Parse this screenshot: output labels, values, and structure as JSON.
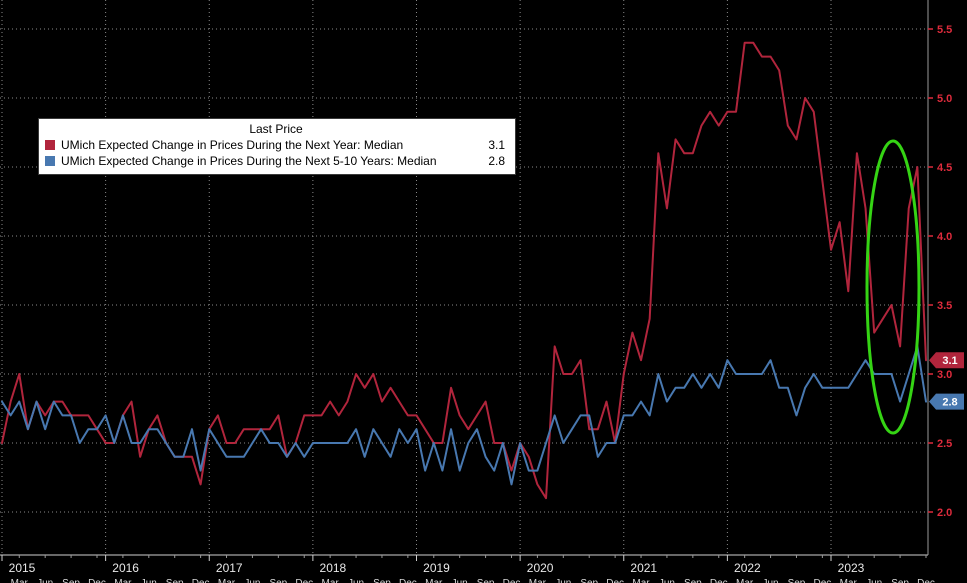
{
  "chart_data": {
    "type": "line",
    "legend_title": "Last Price",
    "background": "#000000",
    "grid": true,
    "years": [
      2015,
      2016,
      2017,
      2018,
      2019,
      2020,
      2021,
      2022,
      2023
    ],
    "x_axis": {
      "frequency": "monthly",
      "minor_labels": [
        "Mar",
        "Jun",
        "Sep",
        "Dec"
      ],
      "label_color": "#e8e8e8"
    },
    "y_axis": {
      "side": "right",
      "ticks": [
        2.0,
        2.5,
        3.0,
        3.5,
        4.0,
        4.5,
        5.0,
        5.5
      ],
      "min": 1.69,
      "max": 5.71,
      "label_color": "#de2b3c"
    },
    "series": [
      {
        "name": "UMich Expected Change in Prices During the Next Year: Median",
        "last_price": "3.1",
        "color": "#b1253c",
        "values": [
          2.5,
          2.8,
          3.0,
          2.6,
          2.8,
          2.7,
          2.8,
          2.8,
          2.7,
          2.7,
          2.7,
          2.6,
          2.5,
          2.5,
          2.7,
          2.8,
          2.4,
          2.6,
          2.7,
          2.5,
          2.4,
          2.4,
          2.4,
          2.2,
          2.6,
          2.7,
          2.5,
          2.5,
          2.6,
          2.6,
          2.6,
          2.6,
          2.7,
          2.4,
          2.5,
          2.7,
          2.7,
          2.7,
          2.8,
          2.7,
          2.8,
          3.0,
          2.9,
          3.0,
          2.8,
          2.9,
          2.8,
          2.7,
          2.7,
          2.6,
          2.5,
          2.5,
          2.9,
          2.7,
          2.6,
          2.7,
          2.8,
          2.5,
          2.5,
          2.3,
          2.5,
          2.4,
          2.2,
          2.1,
          3.2,
          3.0,
          3.0,
          3.1,
          2.6,
          2.6,
          2.8,
          2.5,
          3.0,
          3.3,
          3.1,
          3.4,
          4.6,
          4.2,
          4.7,
          4.6,
          4.6,
          4.8,
          4.9,
          4.8,
          4.9,
          4.9,
          5.4,
          5.4,
          5.3,
          5.3,
          5.2,
          4.8,
          4.7,
          5.0,
          4.9,
          4.4,
          3.9,
          4.1,
          3.6,
          4.6,
          4.2,
          3.3,
          3.4,
          3.5,
          3.2,
          4.2,
          4.5,
          3.1
        ]
      },
      {
        "name": "UMich Expected Change in Prices During the Next 5-10 Years: Median",
        "last_price": "2.8",
        "color": "#4878b0",
        "values": [
          2.8,
          2.7,
          2.8,
          2.6,
          2.8,
          2.6,
          2.8,
          2.7,
          2.7,
          2.5,
          2.6,
          2.6,
          2.7,
          2.5,
          2.7,
          2.5,
          2.5,
          2.6,
          2.6,
          2.5,
          2.4,
          2.4,
          2.6,
          2.3,
          2.6,
          2.5,
          2.4,
          2.4,
          2.4,
          2.5,
          2.6,
          2.5,
          2.5,
          2.4,
          2.5,
          2.4,
          2.5,
          2.5,
          2.5,
          2.5,
          2.5,
          2.6,
          2.4,
          2.6,
          2.5,
          2.4,
          2.6,
          2.5,
          2.6,
          2.3,
          2.5,
          2.3,
          2.6,
          2.3,
          2.5,
          2.6,
          2.4,
          2.3,
          2.5,
          2.2,
          2.5,
          2.3,
          2.3,
          2.5,
          2.7,
          2.5,
          2.6,
          2.7,
          2.7,
          2.4,
          2.5,
          2.5,
          2.7,
          2.7,
          2.8,
          2.7,
          3.0,
          2.8,
          2.9,
          2.9,
          3.0,
          2.9,
          3.0,
          2.9,
          3.1,
          3.0,
          3.0,
          3.0,
          3.0,
          3.1,
          2.9,
          2.9,
          2.7,
          2.9,
          3.0,
          2.9,
          2.9,
          2.9,
          2.9,
          3.0,
          3.1,
          3.0,
          3.0,
          3.0,
          2.8,
          3.0,
          3.2,
          2.8
        ]
      }
    ],
    "price_badges": [
      {
        "value": "3.1",
        "color": "#b1253c"
      },
      {
        "value": "2.8",
        "color": "#4878b0"
      }
    ],
    "annotation": {
      "type": "ellipse",
      "color": "#35d414",
      "note": "highlight of latest spike and drop"
    },
    "gridline_color": "#8a8a8a"
  }
}
